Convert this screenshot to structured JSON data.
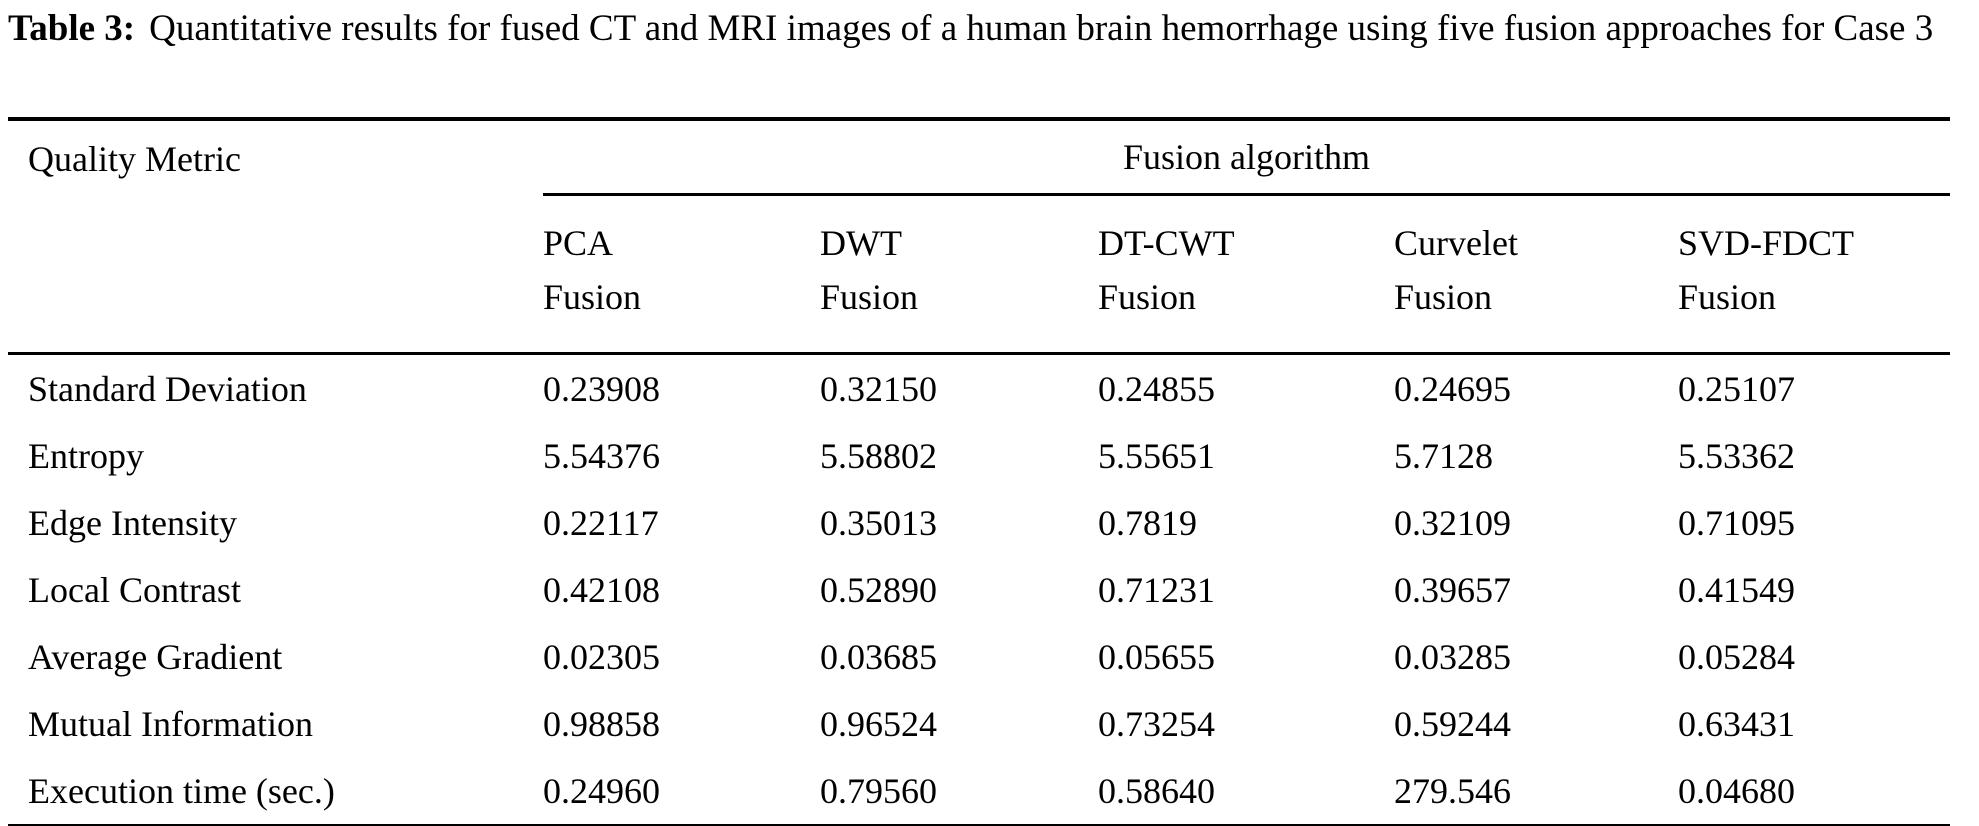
{
  "colors": {
    "text": "#000000",
    "background": "#ffffff",
    "rule": "#000000"
  },
  "caption": {
    "label": "Table 3:",
    "text": "Quantitative results for fused CT and MRI images of a human brain hemorrhage using five fusion approaches for Case 3"
  },
  "table": {
    "metric_header": "Quality Metric",
    "group_header": "Fusion algorithm",
    "columns": [
      {
        "line1": "PCA",
        "line2": "Fusion"
      },
      {
        "line1": "DWT",
        "line2": "Fusion"
      },
      {
        "line1": "DT-CWT",
        "line2": "Fusion"
      },
      {
        "line1": "Curvelet",
        "line2": "Fusion"
      },
      {
        "line1": "SVD-FDCT",
        "line2": "Fusion"
      }
    ],
    "rows": [
      {
        "metric": "Standard Deviation",
        "values": [
          "0.23908",
          "0.32150",
          "0.24855",
          "0.24695",
          "0.25107"
        ]
      },
      {
        "metric": "Entropy",
        "values": [
          "5.54376",
          "5.58802",
          "5.55651",
          "5.7128",
          "5.53362"
        ]
      },
      {
        "metric": "Edge Intensity",
        "values": [
          "0.22117",
          "0.35013",
          "0.7819",
          "0.32109",
          "0.71095"
        ]
      },
      {
        "metric": "Local Contrast",
        "values": [
          "0.42108",
          "0.52890",
          "0.71231",
          "0.39657",
          "0.41549"
        ]
      },
      {
        "metric": "Average Gradient",
        "values": [
          "0.02305",
          "0.03685",
          "0.05655",
          "0.03285",
          "0.05284"
        ]
      },
      {
        "metric": "Mutual Information",
        "values": [
          "0.98858",
          "0.96524",
          "0.73254",
          "0.59244",
          "0.63431"
        ]
      },
      {
        "metric": "Execution time (sec.)",
        "values": [
          "0.24960",
          "0.79560",
          "0.58640",
          "279.546",
          "0.04680"
        ]
      }
    ]
  }
}
